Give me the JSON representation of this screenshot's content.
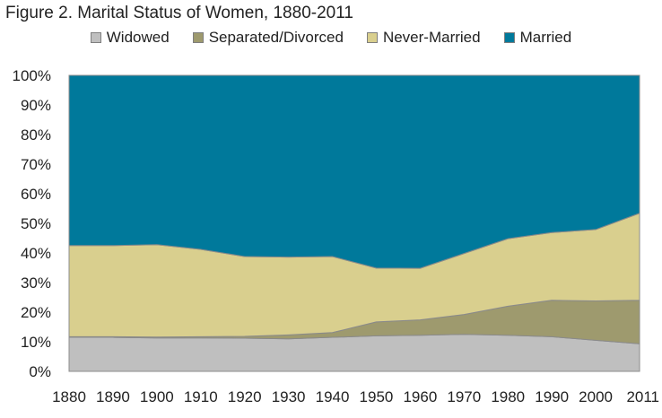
{
  "chart_data": {
    "type": "area",
    "stacked": true,
    "percent": true,
    "title": "Figure 2. Marital Status of Women, 1880-2011",
    "xlabel": "",
    "ylabel": "",
    "x": [
      "1880",
      "1890",
      "1900",
      "1910",
      "1920",
      "1930",
      "1940",
      "1950",
      "1960",
      "1970",
      "1980",
      "1990",
      "2000",
      "2011"
    ],
    "yticks": [
      "0%",
      "10%",
      "20%",
      "30%",
      "40%",
      "50%",
      "60%",
      "70%",
      "80%",
      "90%",
      "100%"
    ],
    "ylim": [
      0,
      100
    ],
    "grid": false,
    "legend_position": "top",
    "series": [
      {
        "name": "Widowed",
        "color": "#bfbfbf",
        "values": [
          11.5,
          11.5,
          11.3,
          11.3,
          11.2,
          11,
          11.5,
          12,
          12.2,
          12.5,
          12.2,
          11.7,
          10.5,
          9.3
        ]
      },
      {
        "name": "Separated/Divorced",
        "color": "#9e9a6e",
        "values": [
          0.2,
          0.2,
          0.3,
          0.4,
          0.6,
          1.3,
          1.6,
          4.7,
          5.2,
          6.7,
          9.8,
          12.3,
          13.3,
          14.7
        ]
      },
      {
        "name": "Never-Married",
        "color": "#d9cf8e",
        "values": [
          30.8,
          30.8,
          31.2,
          29.5,
          27,
          26.3,
          25.7,
          18.2,
          17.4,
          20.6,
          22.8,
          22.9,
          24.1,
          29.4
        ]
      },
      {
        "name": "Married",
        "color": "#00799b",
        "values": [
          57.5,
          57.5,
          57.2,
          58.8,
          61.2,
          61.4,
          61.2,
          65.1,
          65.2,
          60.2,
          55.2,
          53.1,
          52.1,
          46.6
        ]
      }
    ]
  }
}
